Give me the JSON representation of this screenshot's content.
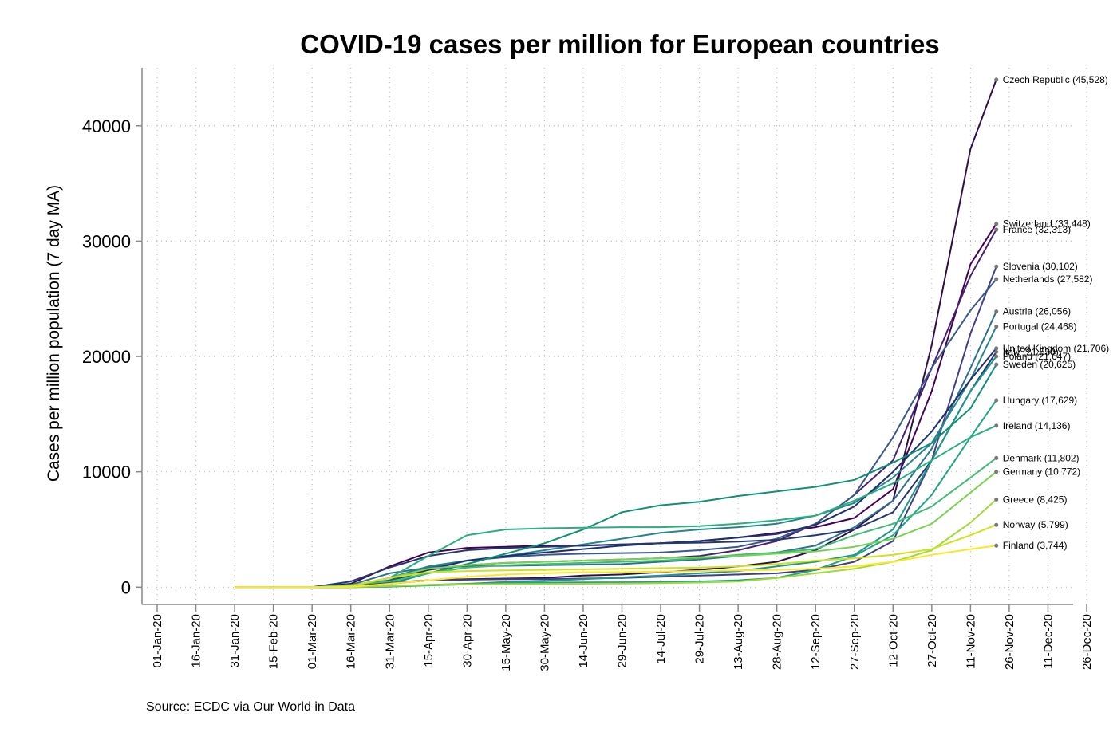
{
  "chart_data": {
    "type": "line",
    "title": "COVID-19 cases per million for European countries",
    "y_label": "Cases per million population (7 day MA)",
    "source": "Source: ECDC via Our World in Data",
    "x": [
      "31-Jan-20",
      "15-Feb-20",
      "01-Mar-20",
      "16-Mar-20",
      "31-Mar-20",
      "15-Apr-20",
      "30-Apr-20",
      "15-May-20",
      "30-May-20",
      "14-Jun-20",
      "29-Jun-20",
      "14-Jul-20",
      "29-Jul-20",
      "13-Aug-20",
      "28-Aug-20",
      "12-Sep-20",
      "27-Sep-20",
      "12-Oct-20",
      "27-Oct-20",
      "11-Nov-20",
      "21-Nov-20"
    ],
    "xlim": [
      "01-Jan-20",
      "26-Dec-20"
    ],
    "xticks": [
      "01-Jan-20",
      "16-Jan-20",
      "31-Jan-20",
      "15-Feb-20",
      "01-Mar-20",
      "16-Mar-20",
      "31-Mar-20",
      "15-Apr-20",
      "30-Apr-20",
      "15-May-20",
      "30-May-20",
      "14-Jun-20",
      "29-Jun-20",
      "14-Jul-20",
      "29-Jul-20",
      "13-Aug-20",
      "28-Aug-20",
      "12-Sep-20",
      "27-Sep-20",
      "12-Oct-20",
      "27-Oct-20",
      "11-Nov-20",
      "26-Nov-20",
      "11-Dec-20",
      "26-Dec-20"
    ],
    "ylim": [
      -1500,
      46000
    ],
    "yticks": [
      0,
      10000,
      20000,
      30000,
      40000
    ],
    "grid": true,
    "series": [
      {
        "name": "Czech Republic (45,528)",
        "color": "#2f0f4a",
        "values": [
          0,
          0,
          0,
          50,
          300,
          600,
          700,
          750,
          800,
          1000,
          1100,
          1300,
          1500,
          1800,
          2200,
          3200,
          5000,
          7500,
          21000,
          38000,
          44000
        ]
      },
      {
        "name": "Switzerland (33,448)",
        "color": "#440154",
        "values": [
          0,
          0,
          0,
          300,
          1800,
          3000,
          3400,
          3500,
          3600,
          3600,
          3700,
          3800,
          4000,
          4300,
          4700,
          5200,
          6000,
          8500,
          17000,
          28000,
          31500
        ]
      },
      {
        "name": "France (32,313)",
        "color": "#482173",
        "values": [
          0,
          0,
          0,
          100,
          800,
          1500,
          1900,
          2100,
          2200,
          2300,
          2400,
          2500,
          2700,
          3200,
          4000,
          5500,
          8000,
          11000,
          19000,
          27000,
          31000
        ]
      },
      {
        "name": "Slovenia (30,102)",
        "color": "#433e85",
        "values": [
          0,
          0,
          0,
          100,
          400,
          600,
          650,
          700,
          700,
          750,
          800,
          900,
          1000,
          1100,
          1200,
          1500,
          2200,
          4000,
          11000,
          22000,
          27800
        ]
      },
      {
        "name": "Netherlands (27,582)",
        "color": "#38588c",
        "values": [
          0,
          0,
          0,
          100,
          600,
          1700,
          2300,
          2600,
          2800,
          2900,
          2950,
          3000,
          3200,
          3500,
          4200,
          5500,
          8000,
          13000,
          19000,
          24000,
          26700
        ]
      },
      {
        "name": "Austria (26,056)",
        "color": "#2d6f8e",
        "values": [
          0,
          0,
          0,
          200,
          1200,
          1700,
          1800,
          1850,
          1900,
          1950,
          2000,
          2200,
          2400,
          2700,
          3000,
          3600,
          5200,
          7500,
          12000,
          19000,
          23900
        ]
      },
      {
        "name": "Portugal (24,468)",
        "color": "#25848e",
        "values": [
          0,
          0,
          0,
          50,
          800,
          1800,
          2300,
          2700,
          3200,
          3700,
          4200,
          4700,
          5000,
          5200,
          5500,
          6200,
          7300,
          9500,
          12500,
          18000,
          22600
        ]
      },
      {
        "name": "United Kingdom (21,706)",
        "color": "#1f2f6e",
        "values": [
          0,
          0,
          0,
          20,
          500,
          1500,
          2300,
          2700,
          3000,
          3300,
          3600,
          3800,
          4000,
          4300,
          4600,
          5400,
          7000,
          10000,
          13500,
          18000,
          20700
        ]
      },
      {
        "name": "Italy (21,530)",
        "color": "#24386f",
        "values": [
          0,
          0,
          0,
          500,
          1700,
          2700,
          3200,
          3400,
          3500,
          3600,
          3700,
          3800,
          3850,
          3950,
          4100,
          4500,
          5000,
          6500,
          11000,
          17000,
          20400
        ]
      },
      {
        "name": "Poland (21,647)",
        "color": "#1f988b",
        "values": [
          0,
          0,
          0,
          0,
          50,
          200,
          300,
          450,
          550,
          700,
          850,
          1000,
          1200,
          1400,
          1800,
          2200,
          2800,
          5000,
          11000,
          17000,
          20000
        ]
      },
      {
        "name": "Sweden (20,625)",
        "color": "#109075",
        "values": [
          0,
          0,
          0,
          20,
          300,
          1200,
          2000,
          2900,
          3800,
          5000,
          6500,
          7100,
          7400,
          7900,
          8300,
          8700,
          9300,
          10800,
          12500,
          15500,
          19300
        ]
      },
      {
        "name": "Hungary (17,629)",
        "color": "#20a386",
        "values": [
          0,
          0,
          0,
          0,
          50,
          150,
          250,
          350,
          400,
          420,
          430,
          450,
          500,
          600,
          800,
          1500,
          2700,
          4500,
          8000,
          13000,
          16200
        ]
      },
      {
        "name": "Ireland (14,136)",
        "color": "#29af7f",
        "values": [
          0,
          0,
          0,
          100,
          800,
          2700,
          4500,
          5000,
          5100,
          5150,
          5200,
          5200,
          5300,
          5500,
          5800,
          6200,
          7500,
          9000,
          11000,
          13000,
          14000
        ]
      },
      {
        "name": "Denmark (11,802)",
        "color": "#3fbc73",
        "values": [
          0,
          0,
          0,
          200,
          500,
          1200,
          1700,
          1900,
          2000,
          2100,
          2200,
          2300,
          2500,
          2800,
          3000,
          3300,
          4500,
          5500,
          7000,
          9500,
          11200
        ]
      },
      {
        "name": "Germany (10,772)",
        "color": "#7ad151",
        "values": [
          0,
          0,
          0,
          100,
          800,
          1600,
          1900,
          2100,
          2200,
          2300,
          2400,
          2500,
          2600,
          2700,
          2900,
          3100,
          3500,
          4200,
          5500,
          8200,
          10000
        ]
      },
      {
        "name": "Greece (8,425)",
        "color": "#a0da39",
        "values": [
          0,
          0,
          0,
          10,
          100,
          200,
          250,
          270,
          280,
          300,
          320,
          350,
          400,
          500,
          800,
          1200,
          1600,
          2200,
          3200,
          5600,
          7600
        ]
      },
      {
        "name": "Norway (5,799)",
        "color": "#d0e11c",
        "values": [
          0,
          0,
          0,
          100,
          800,
          1300,
          1400,
          1450,
          1500,
          1550,
          1600,
          1650,
          1700,
          1800,
          2000,
          2300,
          2500,
          2800,
          3300,
          4500,
          5400
        ]
      },
      {
        "name": "Finland (3,744)",
        "color": "#fde725",
        "values": [
          0,
          0,
          0,
          30,
          300,
          600,
          900,
          1100,
          1200,
          1300,
          1300,
          1350,
          1400,
          1450,
          1500,
          1600,
          1800,
          2200,
          2800,
          3300,
          3600
        ]
      }
    ]
  }
}
